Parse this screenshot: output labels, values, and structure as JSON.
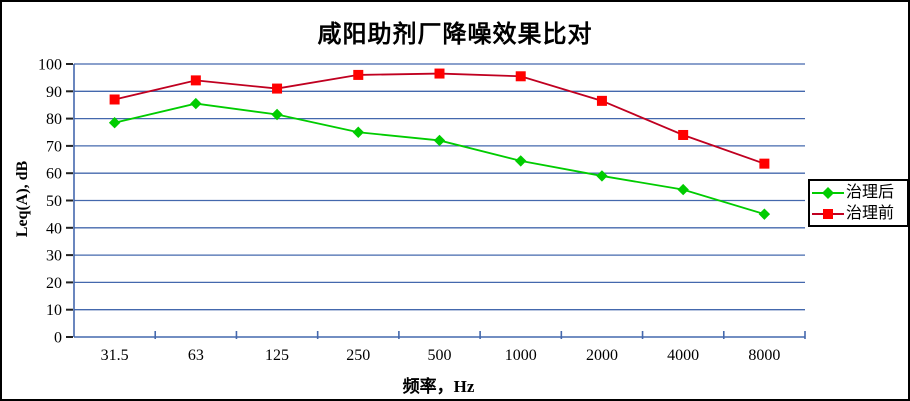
{
  "chart_data": {
    "type": "line",
    "title": "咸阳助剂厂降噪效果比对",
    "xlabel": "频率，Hz",
    "ylabel": "Leq(A), dB",
    "categories": [
      "31.5",
      "63",
      "125",
      "250",
      "500",
      "1000",
      "2000",
      "4000",
      "8000"
    ],
    "series": [
      {
        "name": "治理后",
        "marker": "diamond",
        "color": "#00cc00",
        "marker_color": "#00cc00",
        "values": [
          78.5,
          85.5,
          81.5,
          75,
          72,
          64.5,
          59,
          54,
          45
        ]
      },
      {
        "name": "治理前",
        "marker": "square",
        "color": "#c00020",
        "marker_color": "#ff0000",
        "values": [
          87,
          94,
          91,
          96,
          96.5,
          95.5,
          86.5,
          74,
          63.5
        ]
      }
    ],
    "ylim": [
      0,
      100
    ],
    "y_ticks": [
      0,
      10,
      20,
      30,
      40,
      50,
      60,
      70,
      80,
      90,
      100
    ],
    "grid": "horizontal",
    "legend_position": "right",
    "colors": {
      "gridline": "#4468ad",
      "axis": "#4468ad",
      "y_tick_mark": "#222222",
      "x_tick_mark": "#4468ad",
      "text": "#000000",
      "background": "#ffffff",
      "border": "#000000"
    }
  }
}
